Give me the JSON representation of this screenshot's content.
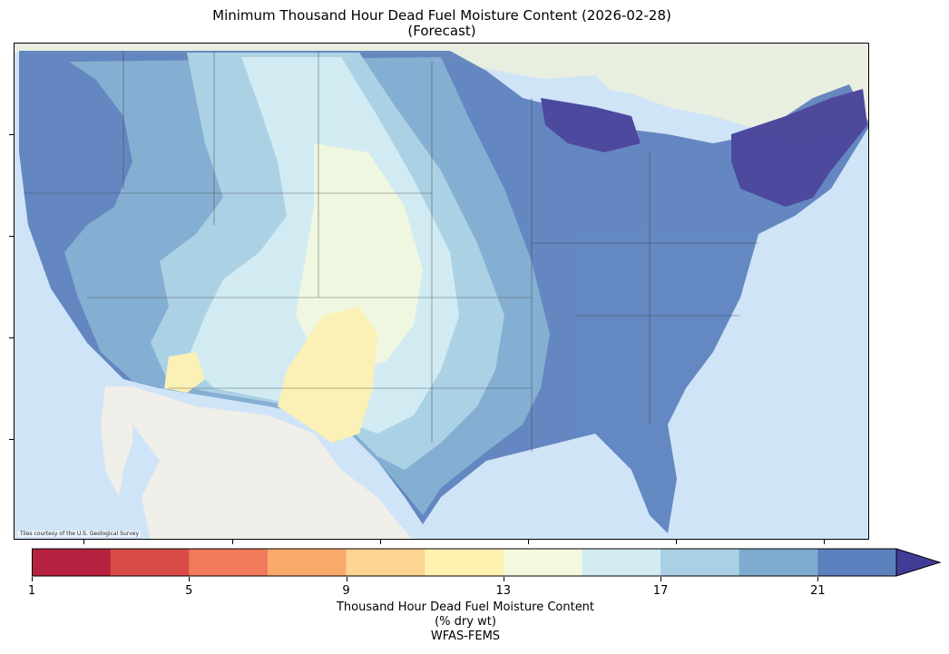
{
  "title": {
    "line1": "Minimum Thousand Hour Dead Fuel Moisture Content (2026-02-28)",
    "line2": "(Forecast)"
  },
  "map": {
    "attribution": "Tiles courtesy of the U.S. Geological Survey",
    "basemap_colors": {
      "ocean": "#cfe4f7",
      "land": "#e9efe0",
      "mexico": "#f0efe9"
    }
  },
  "colorbar": {
    "tick_labels": [
      "1",
      "5",
      "9",
      "13",
      "17",
      "21"
    ],
    "bins": [
      {
        "from": 1,
        "to": 3,
        "color": "#b5213f"
      },
      {
        "from": 3,
        "to": 5,
        "color": "#d94b46"
      },
      {
        "from": 5,
        "to": 7,
        "color": "#f07a59"
      },
      {
        "from": 7,
        "to": 9,
        "color": "#fba96b"
      },
      {
        "from": 9,
        "to": 11,
        "color": "#fed491"
      },
      {
        "from": 11,
        "to": 13,
        "color": "#fff2b0"
      },
      {
        "from": 13,
        "to": 15,
        "color": "#f2f9df"
      },
      {
        "from": 15,
        "to": 17,
        "color": "#d3ecf3"
      },
      {
        "from": 17,
        "to": 19,
        "color": "#a9d0e4"
      },
      {
        "from": 19,
        "to": 21,
        "color": "#7fabcf"
      },
      {
        "from": 21,
        "to": 23,
        "color": "#5b80bd"
      }
    ],
    "extend_color": "#433c97",
    "extend": "max",
    "label_line1": "Thousand Hour Dead Fuel Moisture Content",
    "label_line2": "(% dry wt)",
    "label_line3": "WFAS-FEMS"
  }
}
